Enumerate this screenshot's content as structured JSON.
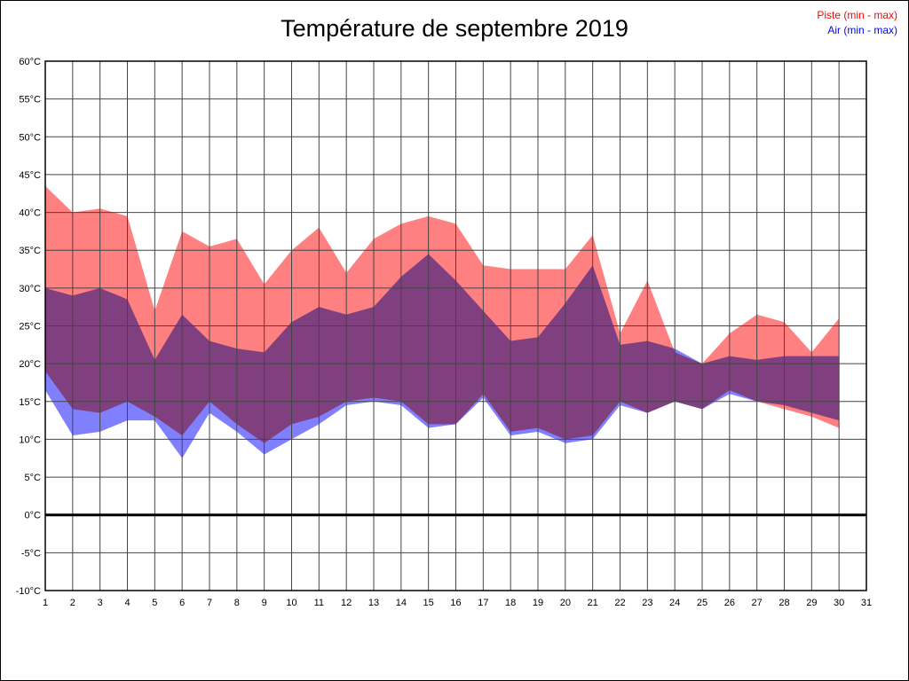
{
  "legend": {
    "piste": {
      "label": "Piste (min - max)",
      "color": "#ff0000"
    },
    "air": {
      "label": "Air (min - max)",
      "color": "#0000ff"
    }
  },
  "chart_data": {
    "type": "area",
    "title": "Température de septembre 2019",
    "xlabel": "",
    "ylabel": "",
    "x_unit": "day of September 2019",
    "ylim": [
      -10,
      60
    ],
    "y_step": 5,
    "grid": true,
    "legend_position": "top-right",
    "x": [
      1,
      2,
      3,
      4,
      5,
      6,
      7,
      8,
      9,
      10,
      11,
      12,
      13,
      14,
      15,
      16,
      17,
      18,
      19,
      20,
      21,
      22,
      23,
      24,
      25,
      26,
      27,
      28,
      29,
      30
    ],
    "x_tick_labels": [
      "1",
      "2",
      "3",
      "4",
      "5",
      "6",
      "7",
      "8",
      "9",
      "10",
      "11",
      "12",
      "13",
      "14",
      "15",
      "16",
      "17",
      "18",
      "19",
      "20",
      "21",
      "22",
      "23",
      "24",
      "25",
      "26",
      "27",
      "28",
      "29",
      "30",
      "31"
    ],
    "y_tick_labels": [
      "60°C",
      "55°C",
      "50°C",
      "45°C",
      "40°C",
      "35°C",
      "30°C",
      "25°C",
      "20°C",
      "15°C",
      "10°C",
      "5°C",
      "0°C",
      "-5°C",
      "-10°C"
    ],
    "series": [
      {
        "name": "Piste max",
        "values": [
          43.5,
          40,
          40.5,
          39.5,
          27,
          37.5,
          35.5,
          36.5,
          30.5,
          35,
          38,
          32,
          36.5,
          38.5,
          39.5,
          38.5,
          33,
          32.5,
          32.5,
          32.5,
          37,
          24,
          31,
          21.5,
          20,
          24,
          26.5,
          25.5,
          21.5,
          26
        ]
      },
      {
        "name": "Piste min",
        "values": [
          19,
          14,
          13.5,
          15,
          13,
          10.5,
          15,
          12,
          9.5,
          12,
          13,
          15,
          15.5,
          15,
          12,
          12,
          16,
          11,
          11.5,
          10,
          10.5,
          15,
          13.5,
          15,
          14,
          16.5,
          15,
          14,
          13,
          11.5
        ]
      },
      {
        "name": "Air max",
        "values": [
          30,
          29,
          30,
          28.5,
          20.5,
          26.5,
          23,
          22,
          21.5,
          25.5,
          27.5,
          26.5,
          27.5,
          31.5,
          34.5,
          31,
          27,
          23,
          23.5,
          28,
          33,
          22.5,
          23,
          22,
          20,
          21,
          20.5,
          21,
          21,
          21
        ]
      },
      {
        "name": "Air min",
        "values": [
          16.5,
          10.5,
          11,
          12.5,
          12.5,
          7.5,
          13.5,
          11,
          8,
          10,
          12,
          14.5,
          15,
          14.5,
          11.5,
          12,
          15.5,
          10.5,
          11,
          9.5,
          10,
          14.5,
          13.5,
          15,
          14,
          16,
          15,
          14.5,
          13.5,
          12.5
        ]
      }
    ],
    "colors": {
      "piste_fill": "#ff8080",
      "air_fill": "#8080ff",
      "overlap": "#804080",
      "grid": "#444444",
      "zero_line": "#000000",
      "border": "#000000",
      "tick_text": "#000000"
    }
  }
}
